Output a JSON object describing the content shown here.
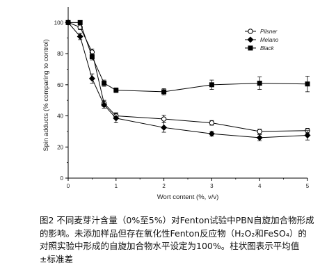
{
  "chart_data": {
    "type": "line",
    "xlabel": "Wort content (%, v/v)",
    "ylabel": "Spin adducts (% comparing to control)",
    "xlim": [
      0,
      5
    ],
    "ylim": [
      0,
      110
    ],
    "xticks": [
      0,
      1,
      2,
      3,
      4,
      5
    ],
    "yticks": [
      0,
      20,
      40,
      60,
      80,
      100
    ],
    "grid": false,
    "legend_position": "top-right",
    "series": [
      {
        "name": "Pilsner",
        "marker": "open-circle",
        "color": "#000000",
        "x": [
          0,
          0.25,
          0.5,
          0.75,
          1,
          2,
          3,
          4,
          5
        ],
        "y": [
          100,
          97,
          81,
          48,
          40,
          38,
          35.5,
          30,
          30.5
        ],
        "err": [
          1,
          1.5,
          2,
          2,
          2,
          2.5,
          1.5,
          1.5,
          1.5
        ]
      },
      {
        "name": "Melano",
        "marker": "filled-diamond",
        "color": "#000000",
        "x": [
          0,
          0.25,
          0.5,
          0.75,
          1,
          2,
          3,
          4,
          5
        ],
        "y": [
          100,
          91,
          64,
          47,
          38.5,
          32.5,
          28.5,
          26,
          27.5
        ],
        "err": [
          1,
          2,
          3,
          2,
          3,
          3,
          1.5,
          2,
          3
        ]
      },
      {
        "name": "Black",
        "marker": "filled-square",
        "color": "#000000",
        "x": [
          0,
          0.25,
          0.5,
          0.75,
          1,
          2,
          3,
          4,
          5
        ],
        "y": [
          100,
          100,
          78,
          61,
          56.5,
          55.5,
          60,
          61,
          60.5
        ],
        "err": [
          1,
          1,
          2,
          2,
          1.5,
          2,
          3,
          4,
          5
        ]
      }
    ]
  },
  "caption": "图2 不同麦芽汁含量（0%至5%）对Fenton试验中PBN自旋加合物形成的影响。未添加样品但存在氧化性Fenton反应物（H₂O₂和FeSO₄）的对照实验中形成的自旋加合物水平设定为100%。柱状图表示平均值±标准差"
}
